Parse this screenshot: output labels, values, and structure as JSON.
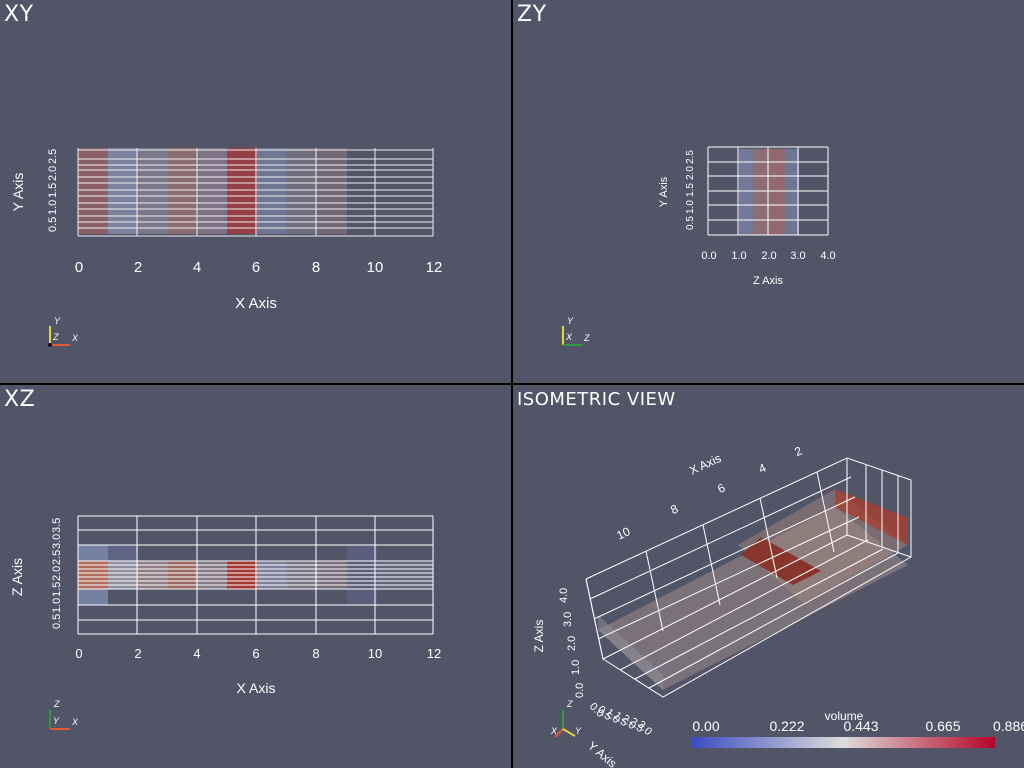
{
  "views": {
    "xy": {
      "title": "XY",
      "xlabel": "X Axis",
      "ylabel": "Y Axis",
      "xticks": [
        "0",
        "2",
        "4",
        "6",
        "8",
        "10",
        "12"
      ],
      "yticks": [
        "0.5",
        "1.0",
        "1.5",
        "2.0",
        "2.5"
      ],
      "triad": [
        "Y",
        "Z",
        "X"
      ]
    },
    "zy": {
      "title": "ZY",
      "xlabel": "Z Axis",
      "ylabel": "Y Axis",
      "xticks": [
        "0.0",
        "1.0",
        "2.0",
        "3.0",
        "4.0"
      ],
      "yticks": [
        "0.5",
        "1.0",
        "1.5",
        "2.0",
        "2.5"
      ],
      "triad": [
        "Y",
        "X",
        "Z"
      ]
    },
    "xz": {
      "title": "XZ",
      "xlabel": "X Axis",
      "ylabel": "Z Axis",
      "xticks": [
        "0",
        "2",
        "4",
        "6",
        "8",
        "10",
        "12"
      ],
      "yticks": [
        "0.5",
        "1.0",
        "1.5",
        "2.0",
        "2.5",
        "3.0",
        "3.5"
      ],
      "triad": [
        "Z",
        "Y",
        "X"
      ]
    },
    "iso": {
      "title": "ISOMETRIC VIEW",
      "xlabel": "X Axis",
      "ylabel": "Y Axis",
      "zlabel": "Z Axis",
      "xticks": [
        "10",
        "8",
        "6",
        "4",
        "2"
      ],
      "zticks": [
        "0.0",
        "1.0",
        "2.0",
        "3.0",
        "4.0"
      ],
      "yticks": [
        "0.0",
        "0.5",
        "1.0",
        "1.5",
        "2.0",
        "2.5",
        "3.0"
      ],
      "triad": [
        "Z",
        "X",
        "Y"
      ]
    }
  },
  "colorbar": {
    "title": "volume",
    "labels": [
      "0.00",
      "0.222",
      "0.443",
      "0.665",
      "0.886"
    ],
    "colors": [
      "#3b4cc0",
      "#dddcdc",
      "#b40426"
    ]
  },
  "colors": {
    "background": "#525468",
    "separator": "#000000",
    "axis_x": "#e05a3a",
    "axis_y": "#e8d23a",
    "axis_z": "#2d9a3d"
  }
}
